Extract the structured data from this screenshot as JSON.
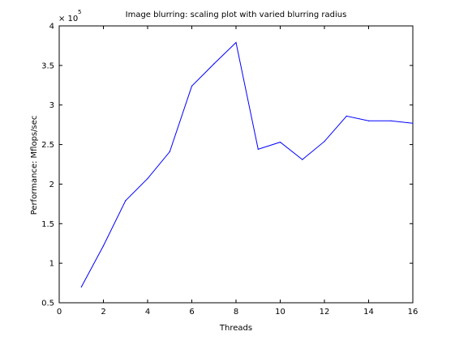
{
  "chart_data": {
    "type": "line",
    "title": "Image blurring: scaling plot with varied blurring radius",
    "xlabel": "Threads",
    "ylabel": "Performance: Mflops/sec",
    "xlim": [
      0,
      16
    ],
    "ylim": [
      0.5,
      4
    ],
    "y_multiplier_base": "× 10",
    "y_multiplier_exponent": "5",
    "x_ticks": [
      "0",
      "2",
      "4",
      "6",
      "8",
      "10",
      "12",
      "14",
      "16"
    ],
    "y_ticks": [
      "0.5",
      "1",
      "1.5",
      "2",
      "2.5",
      "3",
      "3.5",
      "4"
    ],
    "grid": false,
    "series": [
      {
        "color": "#0000ff",
        "x": [
          1,
          2,
          3,
          4,
          5,
          6,
          7,
          8,
          9,
          10,
          11,
          12,
          13,
          14,
          15,
          16
        ],
        "y": [
          0.7,
          1.22,
          1.79,
          2.07,
          2.41,
          3.24,
          3.52,
          3.79,
          2.44,
          2.53,
          2.31,
          2.54,
          2.86,
          2.8,
          2.8,
          2.77
        ]
      }
    ]
  }
}
